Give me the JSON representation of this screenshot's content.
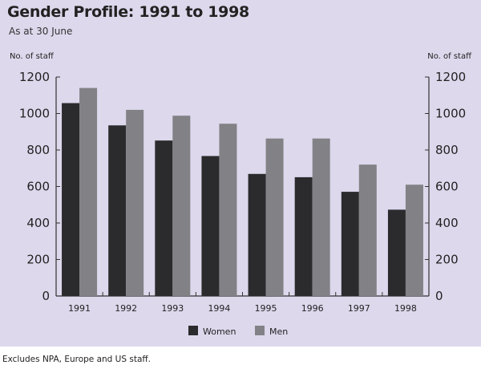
{
  "chart_data": {
    "type": "bar",
    "title": "Gender Profile: 1991 to 1998",
    "subtitle": "As at 30 June",
    "ylabel_left": "No. of staff",
    "ylabel_right": "No. of staff",
    "categories": [
      "1991",
      "1992",
      "1993",
      "1994",
      "1995",
      "1996",
      "1997",
      "1998"
    ],
    "series": [
      {
        "name": "Women",
        "color": "#2b2b2e",
        "values": [
          1057,
          935,
          852,
          767,
          669,
          651,
          571,
          473
        ]
      },
      {
        "name": "Men",
        "color": "#828286",
        "values": [
          1140,
          1020,
          988,
          944,
          863,
          863,
          720,
          610
        ]
      }
    ],
    "ylim": [
      0,
      1200
    ],
    "yticks": [
      0,
      200,
      400,
      600,
      800,
      1000,
      1200
    ],
    "grid": false,
    "legend": "bottom-center",
    "footnote": "Excludes NPA, Europe and US staff."
  }
}
